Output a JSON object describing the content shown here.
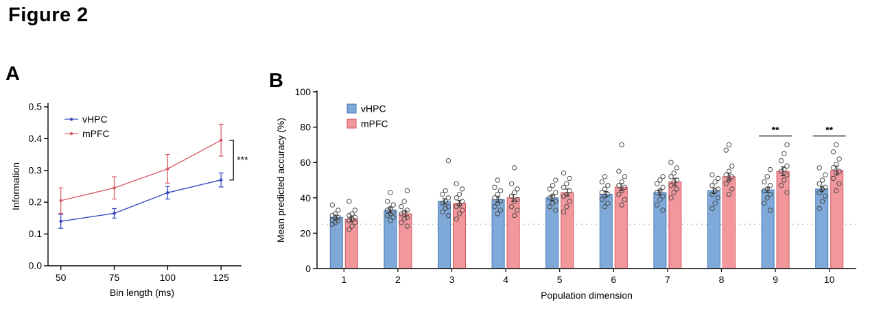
{
  "figure": {
    "title": "Figure 2"
  },
  "panels": [
    {
      "label": "A"
    },
    {
      "label": "B"
    }
  ],
  "chart_data": [
    {
      "id": "panelA",
      "type": "line",
      "title": "",
      "xlabel": "Bin length (ms)",
      "ylabel": "Information",
      "x": [
        50,
        75,
        100,
        125
      ],
      "xlim": [
        44,
        132
      ],
      "ylim": [
        0.0,
        0.5
      ],
      "yticks": [
        0.0,
        0.1,
        0.2,
        0.3,
        0.4,
        0.5
      ],
      "legend_position": "upper-left",
      "grid": false,
      "series": [
        {
          "name": "vHPC",
          "color": "#3a4cc0",
          "values": [
            0.14,
            0.165,
            0.23,
            0.27
          ],
          "errors": [
            0.022,
            0.015,
            0.02,
            0.022
          ]
        },
        {
          "name": "mPFC",
          "color": "#d9606b",
          "values": [
            0.205,
            0.245,
            0.305,
            0.395
          ],
          "errors": [
            0.04,
            0.035,
            0.045,
            0.05
          ]
        }
      ],
      "significance": {
        "label": "***",
        "at_x": 125,
        "between": [
          "mPFC",
          "vHPC"
        ]
      }
    },
    {
      "id": "panelB",
      "type": "bar",
      "title": "",
      "xlabel": "Population dimension",
      "ylabel": "Mean predicted accuracy (%)",
      "categories": [
        1,
        2,
        3,
        4,
        5,
        6,
        7,
        8,
        9,
        10
      ],
      "ylim": [
        0,
        100
      ],
      "yticks": [
        0,
        20,
        40,
        60,
        80,
        100
      ],
      "chance_line": 25,
      "legend_position": "upper-left",
      "grid": false,
      "series": [
        {
          "name": "vHPC",
          "fill": "#7ea9d8",
          "edge": "#4678b4",
          "values": [
            29,
            33,
            38,
            39,
            40,
            42,
            43,
            44,
            44.5,
            45
          ],
          "errors": [
            1.2,
            1.5,
            1.5,
            1.5,
            1.5,
            1.5,
            1.5,
            1.5,
            1.5,
            1.5
          ],
          "points": [
            [
              25,
              26,
              27,
              27.5,
              28.5,
              29,
              30,
              31,
              33,
              36
            ],
            [
              27,
              29,
              30,
              31,
              32,
              33,
              34,
              36,
              38,
              43
            ],
            [
              30,
              32,
              34,
              35,
              37,
              38,
              40,
              42,
              44,
              61
            ],
            [
              31,
              33,
              35,
              37,
              38,
              40,
              42,
              44,
              46,
              50
            ],
            [
              33,
              35,
              37,
              38,
              40,
              41,
              43,
              45,
              47,
              50
            ],
            [
              35,
              37,
              39,
              41,
              42,
              43,
              45,
              47,
              49,
              52
            ],
            [
              33,
              36,
              39,
              41,
              43,
              44,
              46,
              48,
              50,
              52
            ],
            [
              34,
              37,
              40,
              42,
              44,
              45,
              47,
              49,
              51,
              53
            ],
            [
              33,
              37,
              40,
              42,
              44,
              45,
              47,
              49,
              52,
              56
            ],
            [
              34,
              38,
              41,
              43,
              45,
              46,
              48,
              50,
              53,
              57
            ]
          ]
        },
        {
          "name": "mPFC",
          "fill": "#f2979c",
          "edge": "#d4555f",
          "values": [
            28,
            31,
            37,
            40,
            43,
            46,
            49,
            52,
            55,
            55.5
          ],
          "errors": [
            1.5,
            1.5,
            1.5,
            2,
            2,
            2,
            2,
            2,
            2.5,
            2.5
          ],
          "points": [
            [
              22,
              24,
              26,
              27,
              28,
              29,
              30,
              31,
              33,
              38
            ],
            [
              24,
              26,
              28,
              29,
              31,
              32,
              33,
              35,
              38,
              44
            ],
            [
              28,
              31,
              33,
              35,
              36,
              38,
              40,
              42,
              45,
              48
            ],
            [
              30,
              33,
              35,
              38,
              39,
              41,
              43,
              45,
              48,
              57
            ],
            [
              32,
              35,
              38,
              41,
              42,
              44,
              46,
              48,
              51,
              54
            ],
            [
              36,
              39,
              42,
              44,
              46,
              47,
              49,
              52,
              55,
              70
            ],
            [
              40,
              43,
              45,
              47,
              49,
              50,
              52,
              54,
              57,
              60
            ],
            [
              42,
              45,
              48,
              50,
              52,
              53,
              55,
              58,
              67,
              70
            ],
            [
              43,
              47,
              50,
              53,
              55,
              56,
              58,
              61,
              65,
              70
            ],
            [
              44,
              48,
              51,
              54,
              55,
              57,
              59,
              62,
              66,
              70
            ]
          ]
        }
      ],
      "significance": [
        {
          "category": 9,
          "label": "**"
        },
        {
          "category": 10,
          "label": "**"
        }
      ]
    }
  ]
}
